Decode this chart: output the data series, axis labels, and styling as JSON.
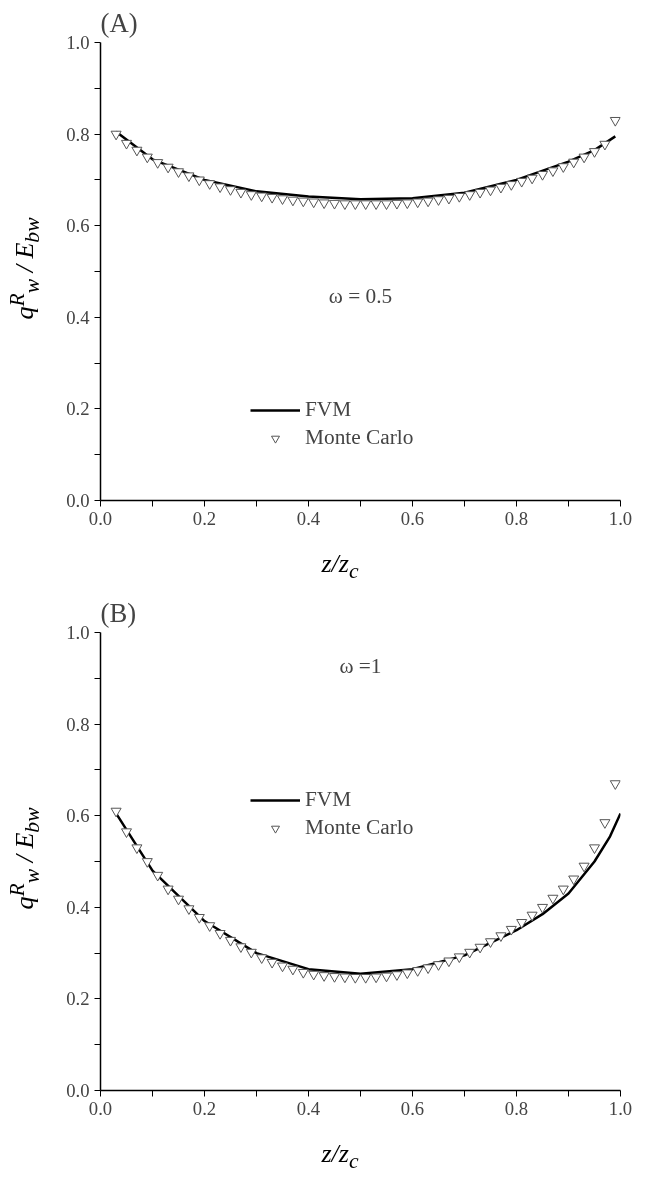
{
  "chart_data": [
    {
      "type": "line",
      "title": "(A)",
      "xlabel": "z/z$_{c}$",
      "ylabel": "q$^{R}$$_{w}$ / E$_{bw}$",
      "annotations": [
        "ω = 0.5"
      ],
      "xlim": [
        0,
        1
      ],
      "ylim": [
        0,
        1
      ],
      "xticks": [
        {
          "value": 0,
          "label": "0.0"
        },
        {
          "value": 0.1,
          "label": null
        },
        {
          "value": 0.2,
          "label": "0.2"
        },
        {
          "value": 0.3,
          "label": null
        },
        {
          "value": 0.4,
          "label": "0.4"
        },
        {
          "value": 0.5,
          "label": null
        },
        {
          "value": 0.6,
          "label": "0.6"
        },
        {
          "value": 0.7,
          "label": null
        },
        {
          "value": 0.8,
          "label": "0.8"
        },
        {
          "value": 0.9,
          "label": null
        },
        {
          "value": 1,
          "label": "1.0"
        }
      ],
      "yticks": [
        {
          "value": 0,
          "label": "0.0"
        },
        {
          "value": 0.1,
          "label": null
        },
        {
          "value": 0.2,
          "label": "0.2"
        },
        {
          "value": 0.3,
          "label": null
        },
        {
          "value": 0.4,
          "label": "0.4"
        },
        {
          "value": 0.5,
          "label": null
        },
        {
          "value": 0.6,
          "label": "0.6"
        },
        {
          "value": 0.7,
          "label": null
        },
        {
          "value": 0.8,
          "label": "0.8"
        },
        {
          "value": 0.9,
          "label": null
        },
        {
          "value": 1,
          "label": "1.0"
        }
      ],
      "legend": "bottom",
      "grid": false,
      "series": [
        {
          "name": "FVM",
          "type": "line",
          "color": "#000000",
          "line_style": "solid",
          "x": [
            0.03,
            0.1,
            0.2,
            0.3,
            0.4,
            0.5,
            0.6,
            0.7,
            0.8,
            0.9,
            0.95,
            0.99
          ],
          "values": [
            0.805,
            0.745,
            0.7,
            0.675,
            0.664,
            0.658,
            0.66,
            0.672,
            0.7,
            0.74,
            0.765,
            0.795
          ]
        },
        {
          "name": "Monte Carlo",
          "type": "scatter",
          "marker": "triangle",
          "color": "#555555",
          "x": [
            0.03,
            0.05,
            0.07,
            0.09,
            0.11,
            0.13,
            0.15,
            0.17,
            0.19,
            0.21,
            0.23,
            0.25,
            0.27,
            0.29,
            0.31,
            0.33,
            0.35,
            0.37,
            0.39,
            0.41,
            0.43,
            0.45,
            0.47,
            0.49,
            0.51,
            0.53,
            0.55,
            0.57,
            0.59,
            0.61,
            0.63,
            0.65,
            0.67,
            0.69,
            0.71,
            0.73,
            0.75,
            0.77,
            0.79,
            0.81,
            0.83,
            0.85,
            0.87,
            0.89,
            0.91,
            0.93,
            0.95,
            0.97,
            0.99
          ],
          "values": [
            0.8,
            0.78,
            0.765,
            0.75,
            0.738,
            0.728,
            0.718,
            0.709,
            0.7,
            0.692,
            0.685,
            0.679,
            0.673,
            0.668,
            0.665,
            0.662,
            0.659,
            0.656,
            0.654,
            0.652,
            0.65,
            0.649,
            0.648,
            0.648,
            0.648,
            0.648,
            0.648,
            0.649,
            0.65,
            0.652,
            0.654,
            0.657,
            0.66,
            0.664,
            0.668,
            0.673,
            0.678,
            0.684,
            0.69,
            0.697,
            0.704,
            0.712,
            0.72,
            0.729,
            0.739,
            0.75,
            0.762,
            0.778,
            0.83
          ]
        }
      ]
    },
    {
      "type": "line",
      "title": "(B)",
      "xlabel": "z/z$_{c}$",
      "ylabel": "q$^{R}$$_{w}$ / E$_{bw}$",
      "annotations": [
        "ω =1"
      ],
      "xlim": [
        0,
        1
      ],
      "ylim": [
        0,
        1
      ],
      "xticks": [
        {
          "value": 0,
          "label": "0.0"
        },
        {
          "value": 0.1,
          "label": null
        },
        {
          "value": 0.2,
          "label": "0.2"
        },
        {
          "value": 0.3,
          "label": null
        },
        {
          "value": 0.4,
          "label": "0.4"
        },
        {
          "value": 0.5,
          "label": null
        },
        {
          "value": 0.6,
          "label": "0.6"
        },
        {
          "value": 0.7,
          "label": null
        },
        {
          "value": 0.8,
          "label": "0.8"
        },
        {
          "value": 0.9,
          "label": null
        },
        {
          "value": 1,
          "label": "1.0"
        }
      ],
      "yticks": [
        {
          "value": 0,
          "label": "0.0"
        },
        {
          "value": 0.1,
          "label": null
        },
        {
          "value": 0.2,
          "label": "0.2"
        },
        {
          "value": 0.3,
          "label": null
        },
        {
          "value": 0.4,
          "label": "0.4"
        },
        {
          "value": 0.5,
          "label": null
        },
        {
          "value": 0.6,
          "label": "0.6"
        },
        {
          "value": 0.7,
          "label": null
        },
        {
          "value": 0.8,
          "label": "0.8"
        },
        {
          "value": 0.9,
          "label": null
        },
        {
          "value": 1,
          "label": "1.0"
        }
      ],
      "legend": "top",
      "grid": false,
      "series": [
        {
          "name": "FVM",
          "type": "line",
          "color": "#000000",
          "line_style": "solid",
          "x": [
            0.03,
            0.1,
            0.2,
            0.3,
            0.4,
            0.5,
            0.6,
            0.7,
            0.8,
            0.85,
            0.9,
            0.95,
            0.98,
            1.0
          ],
          "values": [
            0.605,
            0.48,
            0.37,
            0.3,
            0.265,
            0.255,
            0.265,
            0.295,
            0.35,
            0.385,
            0.43,
            0.5,
            0.555,
            0.605
          ]
        },
        {
          "name": "Monte Carlo",
          "type": "scatter",
          "marker": "triangle",
          "color": "#555555",
          "x": [
            0.03,
            0.05,
            0.07,
            0.09,
            0.11,
            0.13,
            0.15,
            0.17,
            0.19,
            0.21,
            0.23,
            0.25,
            0.27,
            0.29,
            0.31,
            0.33,
            0.35,
            0.37,
            0.39,
            0.41,
            0.43,
            0.45,
            0.47,
            0.49,
            0.51,
            0.53,
            0.55,
            0.57,
            0.59,
            0.61,
            0.63,
            0.65,
            0.67,
            0.69,
            0.71,
            0.73,
            0.75,
            0.77,
            0.79,
            0.81,
            0.83,
            0.85,
            0.87,
            0.89,
            0.91,
            0.93,
            0.95,
            0.97,
            0.99
          ],
          "values": [
            0.61,
            0.565,
            0.53,
            0.5,
            0.47,
            0.44,
            0.418,
            0.397,
            0.378,
            0.36,
            0.343,
            0.328,
            0.314,
            0.302,
            0.29,
            0.28,
            0.272,
            0.265,
            0.258,
            0.254,
            0.251,
            0.249,
            0.248,
            0.247,
            0.247,
            0.248,
            0.25,
            0.253,
            0.257,
            0.262,
            0.268,
            0.275,
            0.283,
            0.292,
            0.302,
            0.313,
            0.325,
            0.338,
            0.352,
            0.367,
            0.383,
            0.4,
            0.42,
            0.44,
            0.462,
            0.49,
            0.53,
            0.585,
            0.67
          ]
        }
      ]
    }
  ]
}
